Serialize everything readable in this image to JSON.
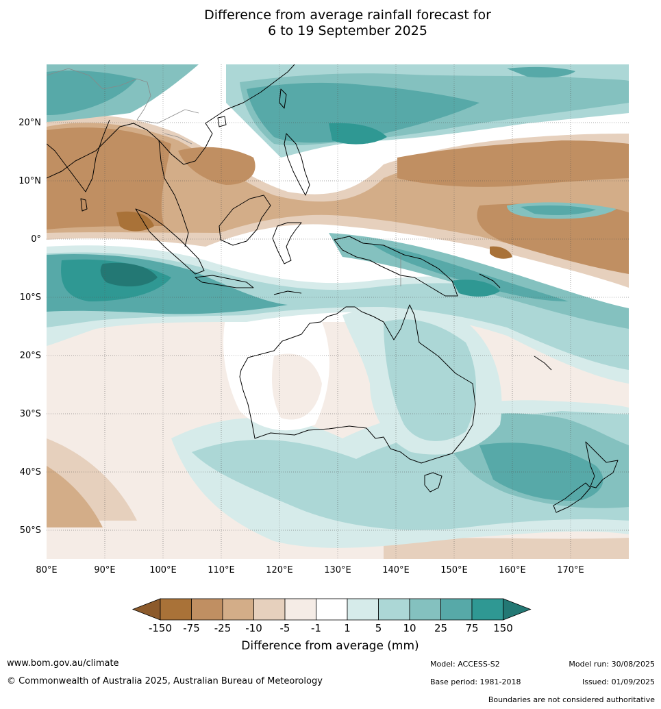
{
  "title": {
    "line1": "Difference from average rainfall forecast for",
    "line2": "6 to 19 September 2025"
  },
  "map": {
    "region": "Indian Ocean, Australia, South-East Asia and Western Pacific",
    "lon_range": [
      80,
      180
    ],
    "lat_range": [
      -55,
      30
    ],
    "lon_ticks": [
      "80°E",
      "90°E",
      "100°E",
      "110°E",
      "120°E",
      "130°E",
      "140°E",
      "150°E",
      "160°E",
      "170°E"
    ],
    "lat_ticks": [
      "20°N",
      "10°N",
      "0°",
      "10°S",
      "20°S",
      "30°S",
      "40°S",
      "50°S"
    ]
  },
  "colorbar": {
    "label": "Difference from average (mm)",
    "ticks": [
      "-150",
      "-75",
      "-25",
      "-10",
      "-5",
      "-1",
      "1",
      "5",
      "10",
      "25",
      "75",
      "150"
    ],
    "colors": [
      "#8c5a2b",
      "#a97238",
      "#c08f62",
      "#d3ad88",
      "#e6d0bd",
      "#f5ece6",
      "#ffffff",
      "#d6ebea",
      "#acd7d6",
      "#84c1bf",
      "#57a9a8",
      "#2f9893",
      "#237874"
    ]
  },
  "footer": {
    "website": "www.bom.gov.au/climate",
    "copyright": "© Commonwealth of Australia 2025, Australian Bureau of Meteorology",
    "model": "Model: ACCESS-S2",
    "base_period": "Base period: 1981-2018",
    "model_run": "Model run: 30/08/2025",
    "issued": "Issued: 01/09/2025",
    "disclaimer": "Boundaries are not considered authoritative"
  }
}
